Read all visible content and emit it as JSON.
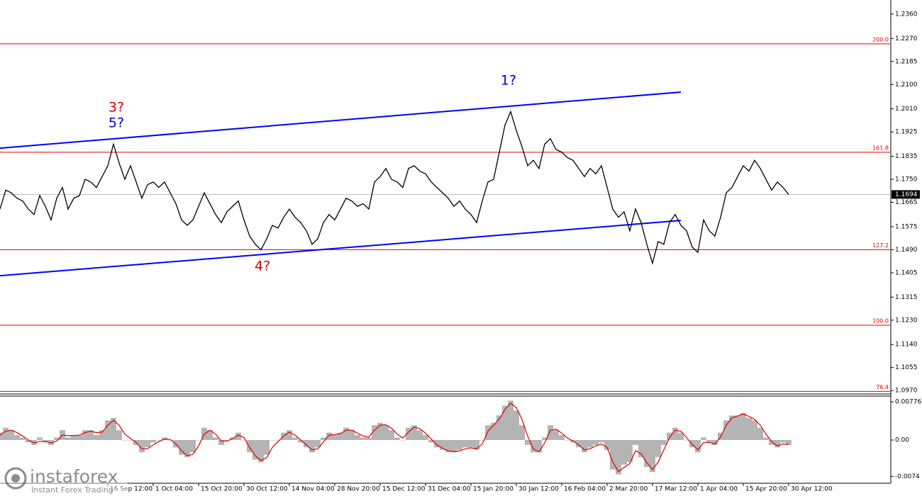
{
  "chart_data": {
    "type": "line",
    "categories": [
      null,
      null,
      null,
      null,
      null,
      null,
      null,
      null,
      null,
      null,
      null,
      null,
      null,
      null,
      null,
      null,
      null,
      null,
      null,
      "16 Sep 12:00",
      null,
      null,
      null,
      null,
      null,
      null,
      null,
      "1 Oct 04:00",
      null,
      null,
      null,
      null,
      null,
      null,
      null,
      "15 Oct 20:00",
      null,
      null,
      null,
      null,
      null,
      null,
      null,
      "30 Oct 12:00",
      null,
      null,
      null,
      null,
      null,
      null,
      null,
      "14 Nov 04:00",
      null,
      null,
      null,
      null,
      null,
      null,
      null,
      "28 Nov 20:00",
      null,
      null,
      null,
      null,
      null,
      null,
      null,
      "15 Dec 12:00",
      null,
      null,
      null,
      null,
      null,
      null,
      null,
      "31 Dec 04:00",
      null,
      null,
      null,
      null,
      null,
      null,
      null,
      "15 Jan 20:00",
      null,
      null,
      null,
      null,
      null,
      null,
      null,
      "30 Jan 12:00",
      null,
      null,
      null,
      null,
      null,
      null,
      null,
      "16 Feb 04:00",
      null,
      null,
      null,
      null,
      null,
      null,
      null,
      "2 Mar 20:00",
      null,
      null,
      null,
      null,
      null,
      null,
      null,
      "17 Mar 12:00",
      null,
      null,
      null,
      null,
      null,
      null,
      null,
      "1 Apr 04:00",
      null,
      null,
      null,
      null,
      null,
      null,
      null,
      "15 Apr 20:00",
      null,
      null,
      null,
      null,
      null,
      null,
      null,
      "30 Apr 12:00"
    ],
    "series": [
      {
        "color": "#000000",
        "values": [
          1.164,
          1.171,
          1.17,
          1.168,
          1.167,
          1.164,
          1.162,
          1.169,
          1.165,
          1.16,
          1.168,
          1.172,
          1.164,
          1.168,
          1.169,
          1.175,
          1.174,
          1.172,
          1.176,
          1.18,
          1.188,
          1.181,
          1.175,
          1.18,
          1.174,
          1.168,
          1.173,
          1.174,
          1.172,
          1.174,
          1.17,
          1.166,
          1.16,
          1.158,
          1.16,
          1.165,
          1.17,
          1.166,
          1.162,
          1.159,
          1.163,
          1.165,
          1.167,
          1.16,
          1.154,
          1.151,
          1.149,
          1.153,
          1.158,
          1.157,
          1.161,
          1.164,
          1.161,
          1.159,
          1.156,
          1.151,
          1.153,
          1.159,
          1.162,
          1.16,
          1.164,
          1.168,
          1.167,
          1.165,
          1.166,
          1.164,
          1.174,
          1.176,
          1.179,
          1.175,
          1.174,
          1.172,
          1.179,
          1.18,
          1.178,
          1.177,
          1.174,
          1.172,
          1.17,
          1.168,
          1.165,
          1.167,
          1.164,
          1.162,
          1.159,
          1.167,
          1.174,
          1.175,
          1.185,
          1.195,
          1.2,
          1.193,
          1.187,
          1.18,
          1.182,
          1.179,
          1.188,
          1.19,
          1.186,
          1.185,
          1.183,
          1.182,
          1.179,
          1.176,
          1.179,
          1.177,
          1.18,
          1.172,
          1.164,
          1.161,
          1.163,
          1.156,
          1.164,
          1.159,
          1.151,
          1.144,
          1.152,
          1.151,
          1.159,
          1.162,
          1.158,
          1.156,
          1.15,
          1.148,
          1.16,
          1.156,
          1.154,
          1.161,
          1.17,
          1.172,
          1.176,
          1.18,
          1.178,
          1.182,
          1.179,
          1.175,
          1.171,
          1.174,
          1.172,
          1.1694
        ]
      }
    ],
    "ylim": [
      1.096,
      1.2412
    ],
    "yticks": [
      {
        "value": 1.236,
        "label": "1.2360"
      },
      {
        "value": 1.227,
        "label": "1.2270"
      },
      1.2185,
      {
        "value": 1.21,
        "label": "1.2100"
      },
      {
        "value": 1.201,
        "label": "1.2010"
      },
      1.1925,
      1.1835,
      {
        "value": 1.175,
        "label": "1.1750"
      },
      1.1665,
      1.1575,
      {
        "value": 1.149,
        "label": "1.1490"
      },
      1.1405,
      1.1315,
      {
        "value": 1.123,
        "label": "1.1230"
      },
      {
        "value": 1.114,
        "label": "1.1140"
      },
      1.1055,
      {
        "value": 1.097,
        "label": "1.0970"
      }
    ],
    "current_price": 1.1694,
    "levels": [
      {
        "label": "200.0",
        "value": 1.225
      },
      {
        "label": "161.8",
        "value": 1.185
      },
      {
        "label": "127.2",
        "value": 1.149
      },
      {
        "label": "100.0",
        "value": 1.1211
      },
      {
        "label": "76.4",
        "value": 1.0967
      }
    ],
    "level_color": "#e00000",
    "trendlines": [
      {
        "color": "#0000ff",
        "start_index": 0,
        "end_index": 120,
        "start": 1.1865,
        "end": 1.2072
      },
      {
        "color": "#0000ff",
        "start_index": 0,
        "end_index": 120,
        "start": 1.1394,
        "end": 1.1598
      }
    ],
    "annotations": [
      {
        "text": "3?",
        "color": "#e00000"
      },
      {
        "text": "5?",
        "color": "#0000cc"
      },
      {
        "text": "4?",
        "color": "#e00000"
      },
      {
        "text": "1?",
        "color": "#0000cc"
      }
    ],
    "indicator": {
      "ylim": [
        -0.00866,
        0.0088
      ],
      "yticks": [
        0.00776,
        {
          "value": 0,
          "label": "0.00"
        },
        -0.0074
      ],
      "series": [
        {
          "type": "bar",
          "color": "#b4b4b4",
          "values": [
            0.0015,
            0.0025,
            0.002,
            0.001,
            0.0005,
            -0.0005,
            -0.001,
            0.0005,
            -0.0005,
            -0.001,
            0.0005,
            0.002,
            0.0005,
            0.001,
            0.001,
            0.002,
            0.002,
            0.001,
            0.002,
            0.004,
            0.0045,
            0.002,
            0,
            0,
            -0.001,
            -0.0025,
            -0.0015,
            -0.0005,
            0,
            0.0005,
            0,
            -0.0015,
            -0.003,
            -0.0035,
            -0.0025,
            0,
            0.0025,
            0.002,
            0.0005,
            -0.001,
            0,
            0.0005,
            0.0015,
            0,
            -0.0025,
            -0.004,
            -0.0045,
            -0.003,
            0,
            0,
            0.0015,
            0.002,
            0.0005,
            -0.0005,
            -0.0015,
            -0.0025,
            -0.0015,
            0.0005,
            0.0015,
            0.001,
            0.0015,
            0.0025,
            0.002,
            0.001,
            0.0005,
            0.0005,
            0.003,
            0.0035,
            0.003,
            0.002,
            0.0005,
            0,
            0.0025,
            0.003,
            0.002,
            0.001,
            -0.0005,
            -0.0015,
            -0.002,
            -0.0025,
            -0.0025,
            -0.002,
            -0.0015,
            -0.0015,
            -0.002,
            0,
            0.003,
            0.0035,
            0.005,
            0.007,
            0.008,
            0.006,
            0.003,
            -0.001,
            -0.0025,
            -0.0025,
            0.0005,
            0.003,
            0.002,
            0.001,
            0,
            -0.0005,
            -0.0015,
            -0.0025,
            -0.0015,
            -0.001,
            -0.0005,
            -0.002,
            -0.006,
            -0.007,
            -0.005,
            -0.0045,
            -0.001,
            -0.0035,
            -0.0055,
            -0.0065,
            -0.0035,
            -0.001,
            0.0015,
            0.0025,
            0.0015,
            0,
            -0.0015,
            -0.0025,
            0.0005,
            -0.0005,
            -0.001,
            0.0015,
            0.004,
            0.005,
            0.005,
            0.0055,
            0.0045,
            0.004,
            0.0025,
            0.0005,
            -0.001,
            -0.0015,
            -0.0005,
            -0.001
          ]
        },
        {
          "type": "line",
          "color": "#e00000",
          "values": [
            0.001,
            0.0018,
            0.002,
            0.0015,
            0.0008,
            0,
            -0.0006,
            -0.0003,
            -0.0003,
            -0.0006,
            -0.0002,
            0.001,
            0.0009,
            0.0009,
            0.001,
            0.0015,
            0.0018,
            0.0015,
            0.0016,
            0.003,
            0.004,
            0.003,
            0.0012,
            0.0003,
            -0.0005,
            -0.0018,
            -0.0018,
            -0.001,
            -0.0003,
            0.0002,
            0.0001,
            -0.0008,
            -0.0022,
            -0.0032,
            -0.0029,
            -0.0012,
            0.0012,
            0.002,
            0.0012,
            -0.0002,
            -0.0002,
            0.0003,
            0.001,
            0.0005,
            -0.0015,
            -0.0032,
            -0.0042,
            -0.0036,
            -0.0015,
            -0.0003,
            0.0008,
            0.0016,
            0.001,
            0,
            -0.001,
            -0.002,
            -0.0018,
            -0.0004,
            0.001,
            0.0011,
            0.0013,
            0.002,
            0.002,
            0.0014,
            0.0008,
            0.0006,
            0.002,
            0.003,
            0.0031,
            0.0024,
            0.0012,
            0.0004,
            0.0016,
            0.0026,
            0.0023,
            0.0014,
            0.0002,
            -0.001,
            -0.0017,
            -0.0022,
            -0.0024,
            -0.0022,
            -0.0018,
            -0.0016,
            -0.0018,
            -0.0008,
            0.0018,
            0.003,
            0.0043,
            0.0062,
            0.0075,
            0.0066,
            0.0042,
            0.0008,
            -0.0018,
            -0.0024,
            -0.0006,
            0.002,
            0.0022,
            0.0014,
            0.0004,
            -0.0002,
            -0.001,
            -0.002,
            -0.0018,
            -0.0012,
            -0.0008,
            -0.0015,
            -0.0045,
            -0.0064,
            -0.0056,
            -0.0048,
            -0.0022,
            -0.0028,
            -0.0046,
            -0.006,
            -0.0045,
            -0.002,
            0.0005,
            0.002,
            0.0018,
            0.0005,
            -0.0009,
            -0.002,
            -0.0005,
            -0.0005,
            -0.0008,
            0.0006,
            0.003,
            0.0045,
            0.0049,
            0.0053,
            0.0048,
            0.0042,
            0.003,
            0.0012,
            -0.0003,
            -0.0012,
            -0.0008,
            -0.0009
          ]
        }
      ]
    },
    "watermark": {
      "brand": "instaforex",
      "tagline": "Instant Forex Trading"
    }
  }
}
